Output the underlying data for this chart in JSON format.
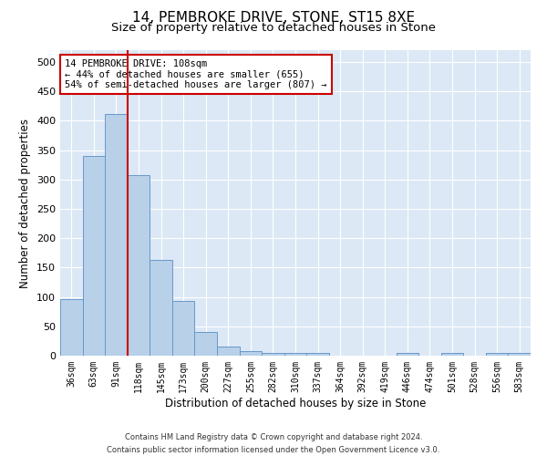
{
  "title": "14, PEMBROKE DRIVE, STONE, ST15 8XE",
  "subtitle": "Size of property relative to detached houses in Stone",
  "xlabel": "Distribution of detached houses by size in Stone",
  "ylabel": "Number of detached properties",
  "categories": [
    "36sqm",
    "63sqm",
    "91sqm",
    "118sqm",
    "145sqm",
    "173sqm",
    "200sqm",
    "227sqm",
    "255sqm",
    "282sqm",
    "310sqm",
    "337sqm",
    "364sqm",
    "392sqm",
    "419sqm",
    "446sqm",
    "474sqm",
    "501sqm",
    "528sqm",
    "556sqm",
    "583sqm"
  ],
  "values": [
    97,
    340,
    412,
    308,
    163,
    93,
    40,
    15,
    8,
    5,
    5,
    5,
    0,
    0,
    0,
    5,
    0,
    5,
    0,
    5,
    5
  ],
  "bar_color": "#b8d0e8",
  "bar_edge_color": "#6699cc",
  "vline_x": 2.5,
  "vline_color": "#cc0000",
  "annotation_text": "14 PEMBROKE DRIVE: 108sqm\n← 44% of detached houses are smaller (655)\n54% of semi-detached houses are larger (807) →",
  "annotation_box_color": "#ffffff",
  "annotation_box_edge_color": "#cc0000",
  "ylim": [
    0,
    520
  ],
  "yticks": [
    0,
    50,
    100,
    150,
    200,
    250,
    300,
    350,
    400,
    450,
    500
  ],
  "plot_background": "#dce8f5",
  "footer_line1": "Contains HM Land Registry data © Crown copyright and database right 2024.",
  "footer_line2": "Contains public sector information licensed under the Open Government Licence v3.0.",
  "title_fontsize": 11,
  "subtitle_fontsize": 9.5,
  "tick_fontsize": 7,
  "ylabel_fontsize": 8.5,
  "xlabel_fontsize": 8.5,
  "annotation_fontsize": 7.5,
  "footer_fontsize": 6
}
